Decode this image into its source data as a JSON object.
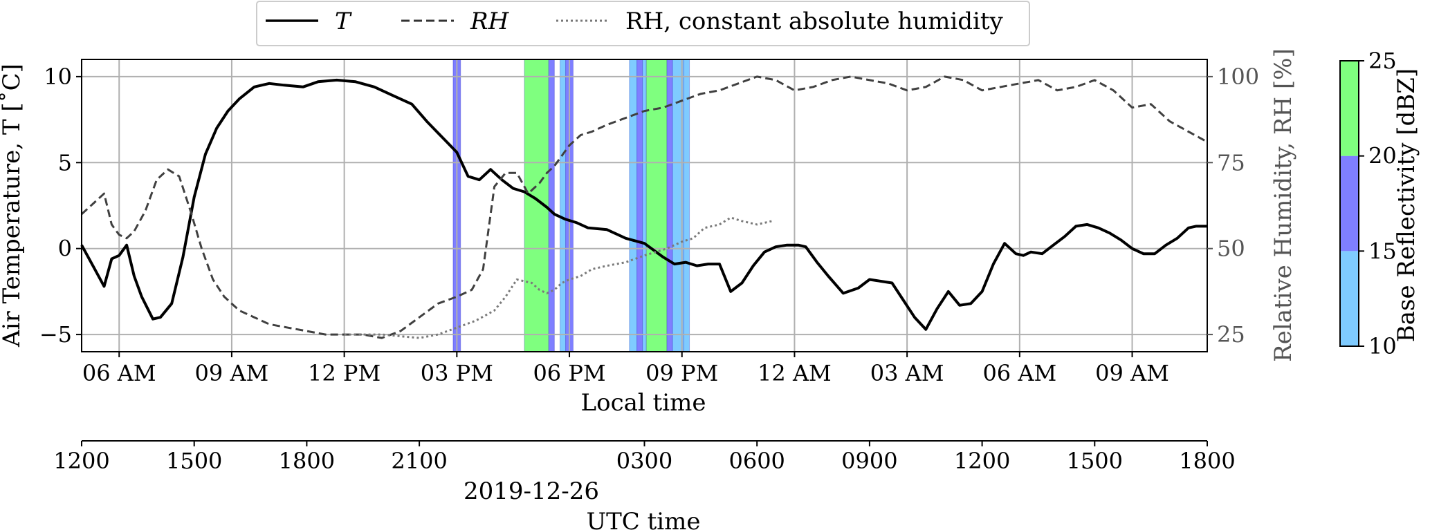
{
  "chart_data": {
    "type": "line",
    "legend": {
      "placement": "top-center, above plot",
      "entries": [
        {
          "label": "T",
          "style": "solid",
          "color": "#000000"
        },
        {
          "label": "RH",
          "style": "dashed",
          "color": "#333333"
        },
        {
          "label": "RH, constant absolute humidity",
          "style": "dotted",
          "color": "#777777"
        }
      ]
    },
    "xaxis_local": {
      "label": "Local time",
      "ticks": [
        {
          "hours": 6,
          "label": "06 AM"
        },
        {
          "hours": 9,
          "label": "09 AM"
        },
        {
          "hours": 12,
          "label": "12 PM"
        },
        {
          "hours": 15,
          "label": "03 PM"
        },
        {
          "hours": 18,
          "label": "06 PM"
        },
        {
          "hours": 21,
          "label": "09 PM"
        },
        {
          "hours": 24,
          "label": "12 AM"
        },
        {
          "hours": 27,
          "label": "03 AM"
        },
        {
          "hours": 30,
          "label": "06 AM"
        },
        {
          "hours": 33,
          "label": "09 AM"
        }
      ],
      "range_hours": [
        5,
        35
      ]
    },
    "xaxis_utc": {
      "label": "UTC time",
      "date_label": "2019-12-26",
      "ticks": [
        "1200",
        "1500",
        "1800",
        "2100",
        "0300",
        "0600",
        "0900",
        "1200",
        "1500",
        "1800"
      ]
    },
    "yaxis_left": {
      "label": "Air Temperature, T [˚C]",
      "ylim": [
        -6,
        11
      ],
      "ticks": [
        "−5",
        "0",
        "5",
        "10"
      ]
    },
    "yaxis_right": {
      "label": "Relative Humidity, RH [%]",
      "ylim": [
        20,
        105
      ],
      "ticks": [
        "25",
        "50",
        "75",
        "100"
      ]
    },
    "grid": true,
    "series": [
      {
        "name": "T",
        "axis": "left",
        "x": [
          5.0,
          5.3,
          5.6,
          5.8,
          6.0,
          6.2,
          6.4,
          6.6,
          6.9,
          7.1,
          7.4,
          7.7,
          8.0,
          8.3,
          8.6,
          8.9,
          9.2,
          9.6,
          10.0,
          10.4,
          10.9,
          11.3,
          11.8,
          12.3,
          12.8,
          13.3,
          13.8,
          14.2,
          14.6,
          15.0,
          15.3,
          15.6,
          15.9,
          16.2,
          16.5,
          16.8,
          17.1,
          17.4,
          17.6,
          17.9,
          18.2,
          18.5,
          19.0,
          19.5,
          20.0,
          20.5,
          20.8,
          21.1,
          21.4,
          21.7,
          22.0,
          22.3,
          22.6,
          22.9,
          23.2,
          23.5,
          23.8,
          24.1,
          24.3,
          24.6,
          24.9,
          25.3,
          25.7,
          26.0,
          26.3,
          26.6,
          26.9,
          27.2,
          27.5,
          27.8,
          28.1,
          28.4,
          28.7,
          29.0,
          29.3,
          29.6,
          29.9,
          30.1,
          30.3,
          30.6,
          30.9,
          31.2,
          31.5,
          31.8,
          32.1,
          32.4,
          32.7,
          33.0,
          33.3,
          33.6,
          33.9,
          34.2,
          34.5,
          34.7,
          35.0
        ],
        "y": [
          0.2,
          -1.0,
          -2.2,
          -0.6,
          -0.4,
          0.2,
          -1.6,
          -2.8,
          -4.1,
          -4.0,
          -3.2,
          -0.5,
          3.0,
          5.5,
          7.0,
          8.0,
          8.7,
          9.4,
          9.6,
          9.5,
          9.4,
          9.7,
          9.8,
          9.7,
          9.4,
          8.9,
          8.4,
          7.4,
          6.5,
          5.6,
          4.2,
          4.0,
          4.6,
          4.0,
          3.5,
          3.3,
          2.9,
          2.4,
          2.0,
          1.7,
          1.5,
          1.2,
          1.1,
          0.6,
          0.3,
          -0.5,
          -0.9,
          -0.8,
          -1.0,
          -0.9,
          -0.9,
          -2.5,
          -2.0,
          -1.0,
          -0.2,
          0.1,
          0.2,
          0.2,
          0.1,
          -0.8,
          -1.6,
          -2.6,
          -2.3,
          -1.8,
          -1.9,
          -2.0,
          -3.0,
          -4.0,
          -4.7,
          -3.5,
          -2.5,
          -3.3,
          -3.2,
          -2.5,
          -0.9,
          0.3,
          -0.3,
          -0.4,
          -0.2,
          -0.3,
          0.2,
          0.7,
          1.3,
          1.4,
          1.2,
          0.9,
          0.5,
          0.0,
          -0.3,
          -0.3,
          0.2,
          0.6,
          1.2,
          1.3,
          1.3
        ]
      },
      {
        "name": "RH",
        "axis": "right",
        "x": [
          5.0,
          5.3,
          5.6,
          5.8,
          6.0,
          6.2,
          6.4,
          6.7,
          7.0,
          7.3,
          7.6,
          7.9,
          8.2,
          8.5,
          8.8,
          9.2,
          9.6,
          10.0,
          10.5,
          11.0,
          11.5,
          12.0,
          12.5,
          13.0,
          13.5,
          14.0,
          14.5,
          15.0,
          15.4,
          15.7,
          16.0,
          16.3,
          16.6,
          16.9,
          17.2,
          17.4,
          17.6,
          17.8,
          18.0,
          18.3,
          18.6,
          19.0,
          19.5,
          20.0,
          20.5,
          21.0,
          21.5,
          22.0,
          22.5,
          23.0,
          23.5,
          24.0,
          24.5,
          25.0,
          25.5,
          26.0,
          26.5,
          27.0,
          27.5,
          28.0,
          28.5,
          29.0,
          29.5,
          30.0,
          30.5,
          31.0,
          31.5,
          32.0,
          32.5,
          33.0,
          33.5,
          34.0,
          34.5,
          35.0
        ],
        "y": [
          60,
          63,
          66,
          57,
          54,
          53,
          55,
          61,
          70,
          73,
          71,
          61,
          50,
          41,
          36,
          32,
          30,
          28,
          27,
          26,
          25,
          25,
          25,
          24,
          26,
          30,
          34,
          36,
          38,
          44,
          68,
          72,
          72,
          66,
          69,
          72,
          74,
          77,
          80,
          83,
          84,
          86,
          88,
          90,
          91,
          93,
          95,
          96,
          98,
          100,
          99,
          96,
          97,
          99,
          100,
          99,
          98,
          96,
          97,
          100,
          99,
          96,
          97,
          98,
          99,
          96,
          97,
          99,
          96,
          91,
          92,
          87,
          84,
          81
        ]
      },
      {
        "name": "RH, constant absolute humidity",
        "axis": "right",
        "x": [
          12.0,
          13.0,
          14.0,
          14.5,
          15.0,
          15.5,
          16.0,
          16.3,
          16.6,
          17.0,
          17.2,
          17.4,
          17.6,
          17.8,
          18.0,
          18.3,
          18.6,
          19.0,
          19.5,
          20.0,
          20.3,
          20.6,
          21.0,
          21.3,
          21.6,
          22.0,
          22.3,
          22.6,
          23.0,
          23.4
        ],
        "y": [
          25,
          25,
          24,
          25,
          27,
          29,
          32,
          36,
          41,
          40,
          38,
          37,
          38,
          40,
          41,
          42,
          44,
          45,
          46,
          48,
          49,
          50,
          52,
          53,
          56,
          57,
          59,
          58,
          57,
          58
        ]
      }
    ],
    "reflectivity_bands": [
      {
        "start": 14.9,
        "end": 15.1,
        "dbz": 17
      },
      {
        "start": 16.8,
        "end": 17.45,
        "dbz": 22
      },
      {
        "start": 17.45,
        "end": 17.6,
        "dbz": 17
      },
      {
        "start": 17.75,
        "end": 17.9,
        "dbz": 12
      },
      {
        "start": 17.9,
        "end": 18.1,
        "dbz": 17
      },
      {
        "start": 19.6,
        "end": 19.8,
        "dbz": 12
      },
      {
        "start": 19.8,
        "end": 19.95,
        "dbz": 17
      },
      {
        "start": 19.95,
        "end": 20.05,
        "dbz": 12
      },
      {
        "start": 20.05,
        "end": 20.6,
        "dbz": 22
      },
      {
        "start": 20.6,
        "end": 20.75,
        "dbz": 17
      },
      {
        "start": 20.75,
        "end": 21.05,
        "dbz": 12
      },
      {
        "start": 21.05,
        "end": 21.2,
        "dbz": 12
      }
    ],
    "colorbar": {
      "label": "Base Reflectivity [dBZ]",
      "ticks": [
        "10",
        "15",
        "20",
        "25"
      ],
      "bins": [
        {
          "from": 10,
          "to": 15,
          "color": "#7fcbff"
        },
        {
          "from": 15,
          "to": 20,
          "color": "#7f7fff"
        },
        {
          "from": 20,
          "to": 25,
          "color": "#7fff7f"
        }
      ]
    }
  }
}
